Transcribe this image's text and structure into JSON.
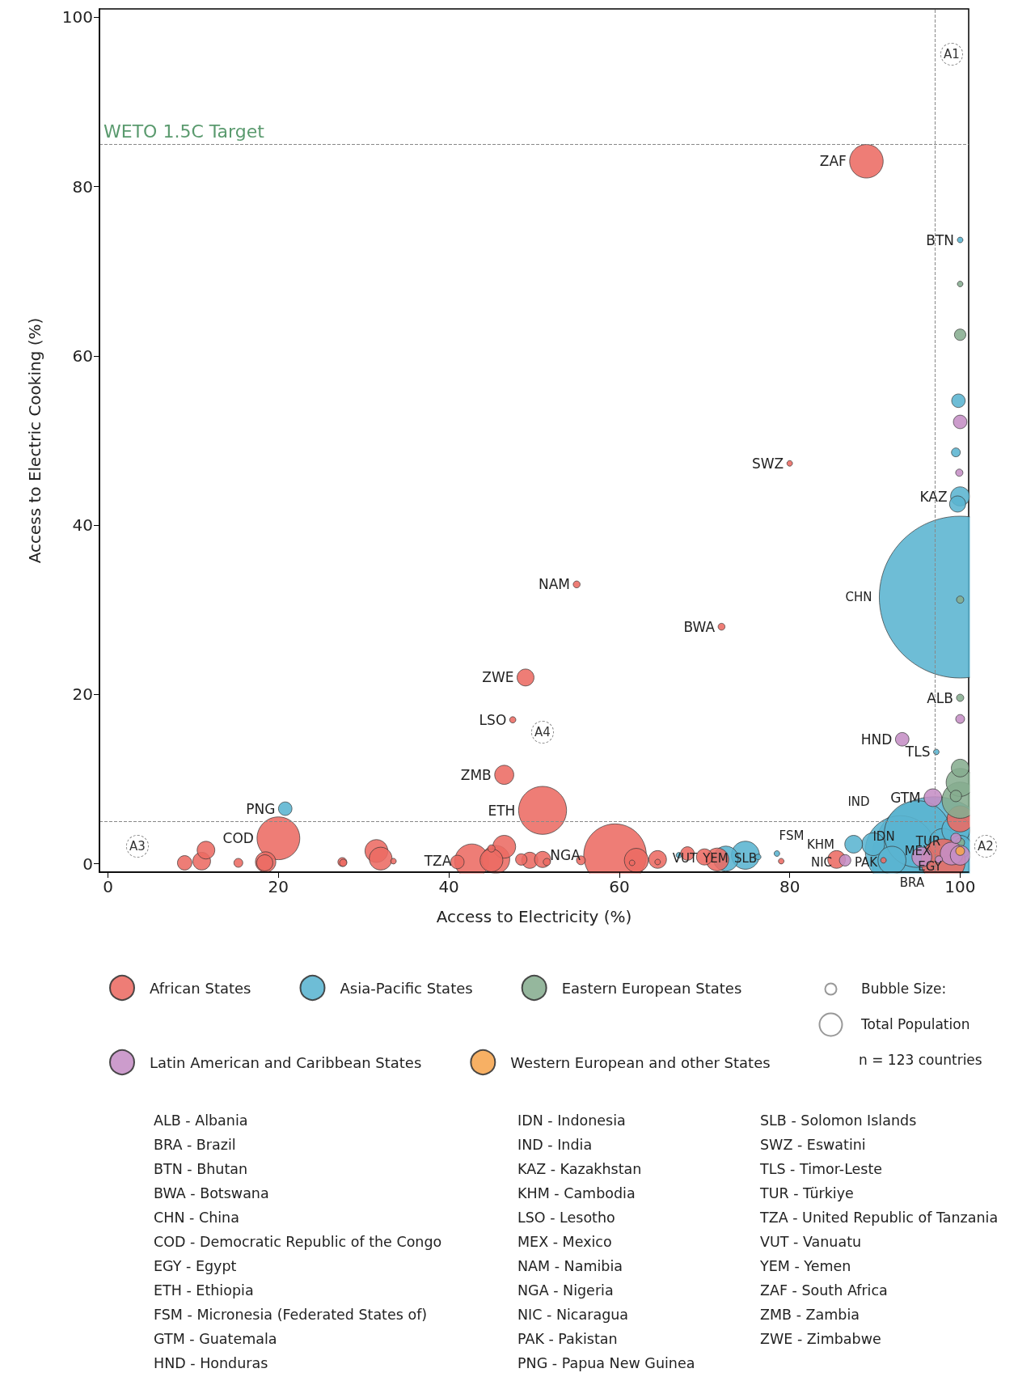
{
  "chart_data": {
    "type": "bubble",
    "xlabel": "Access to Electricity (%)",
    "ylabel": "Access to Electric Cooking (%)",
    "xlim": [
      -1,
      101
    ],
    "ylim": [
      -1,
      101
    ],
    "xticks": [
      0,
      20,
      40,
      60,
      80,
      100
    ],
    "yticks": [
      0,
      20,
      40,
      60,
      80,
      100
    ],
    "grid": false,
    "legend": "bottom",
    "marker": "circle",
    "series": [
      {
        "name": "African States",
        "color": "#ec6b63",
        "x": [
          59.5,
          51,
          20,
          42.7,
          89,
          62,
          49,
          46.5,
          31.5,
          32,
          45.5,
          46.5,
          45,
          18.5,
          11,
          11.5,
          9,
          71.5,
          70,
          64.5,
          68,
          85.5,
          100,
          41,
          49.5,
          51,
          18.4,
          48.5,
          55.5,
          15.3,
          27.5,
          27.6,
          45,
          51.5,
          33.5,
          61.5,
          64.5,
          79,
          91,
          55,
          72,
          47.5,
          80,
          98
        ],
        "values": [
          1,
          6.3,
          3,
          0.3,
          83,
          0.4,
          22,
          10.5,
          1.5,
          0.6,
          0.5,
          2,
          0.4,
          0.2,
          0.3,
          1.6,
          0.1,
          0.5,
          0.8,
          0.5,
          1.2,
          0.5,
          5.3,
          0.2,
          0.4,
          0.5,
          0.1,
          0.5,
          0.4,
          0.1,
          0.2,
          0.1,
          1.8,
          0.2,
          0.3,
          0.1,
          0.2,
          0.3,
          0.4,
          33,
          28,
          17,
          47.3,
          0.3
        ],
        "sizes": [
          0.15,
          0.088,
          0.07,
          0.045,
          0.043,
          0.022,
          0.011,
          0.014,
          0.02,
          0.02,
          0.03,
          0.02,
          0.02,
          0.016,
          0.012,
          0.012,
          0.008,
          0.02,
          0.01,
          0.012,
          0.007,
          0.012,
          0.026,
          0.007,
          0.01,
          0.01,
          0.01,
          0.005,
          0.003,
          0.003,
          0.003,
          0.002,
          0.002,
          0.002,
          0.0012,
          0.0012,
          0.0012,
          0.0012,
          0.0012,
          0.0018,
          0.0018,
          0.0015,
          0.0012,
          0.075
        ]
      },
      {
        "name": "Asia-Pacific States",
        "color": "#5ab4d0",
        "x": [
          100,
          97,
          93,
          95,
          98,
          74.8,
          89.8,
          87.5,
          99.5,
          100,
          100,
          99.7,
          99.8,
          99.5,
          20.8,
          76.3,
          97.2,
          100,
          78.5,
          92,
          67,
          72.5
        ],
        "values": [
          31.5,
          0.5,
          1.5,
          3.5,
          2.5,
          1,
          2.3,
          2.3,
          4,
          2,
          43.4,
          42.5,
          54.7,
          48.6,
          6.5,
          0.8,
          13.2,
          73.7,
          1.2,
          0.4,
          1,
          0.6
        ],
        "sizes": [
          1,
          0.6,
          0.19,
          0.17,
          0.03,
          0.03,
          0.02,
          0.012,
          0.03,
          0.02,
          0.014,
          0.01,
          0.007,
          0.003,
          0.007,
          0.0012,
          0.0012,
          0.0012,
          0.0012,
          0.03,
          0.0012,
          0.024
        ]
      },
      {
        "name": "Eastern European States",
        "color": "#86ad8f",
        "x": [
          100,
          100,
          100,
          99.5,
          100,
          100,
          100,
          100,
          100
        ],
        "values": [
          7.5,
          9.6,
          11.3,
          8,
          62.5,
          31.2,
          19.6,
          68.5,
          2.5
        ],
        "sizes": [
          0.05,
          0.03,
          0.012,
          0.005,
          0.005,
          0.002,
          0.002,
          0.0012,
          0.003
        ]
      },
      {
        "name": "Latin American and Caribbean States",
        "color": "#c58ec5",
        "x": [
          95.5,
          99,
          100,
          96.8,
          93.2,
          100,
          86.5,
          99.9,
          100,
          99.5,
          97.5
        ],
        "values": [
          0.8,
          1.2,
          1,
          7.8,
          14.7,
          52.2,
          0.4,
          46.2,
          17.1,
          3,
          0.5
        ],
        "sizes": [
          0.015,
          0.02,
          0.015,
          0.012,
          0.007,
          0.007,
          0.005,
          0.002,
          0.003,
          0.004,
          0.002
        ]
      },
      {
        "name": "Western European and other States",
        "color": "#f6a54e",
        "x": [
          100
        ],
        "values": [
          1.5
        ],
        "sizes": [
          0.003
        ]
      }
    ],
    "ref_lines": [
      {
        "axis": "y",
        "value": 85,
        "label": "WETO 1.5C Target",
        "color": "#888888",
        "line_style": "dashed"
      },
      {
        "axis": "y",
        "value": 5,
        "color": "#888888",
        "line_style": "dashed"
      },
      {
        "axis": "x",
        "value": 97,
        "color": "#888888",
        "line_style": "dashed"
      }
    ],
    "annotations": [
      {
        "text": "ZAF",
        "x": 89,
        "y": 83
      },
      {
        "text": "BTN",
        "x": 100,
        "y": 73.7
      },
      {
        "text": "SWZ",
        "x": 80,
        "y": 47.3
      },
      {
        "text": "KAZ",
        "x": 100,
        "y": 43.4
      },
      {
        "text": "NAM",
        "x": 55,
        "y": 33
      },
      {
        "text": "BWA",
        "x": 72,
        "y": 28
      },
      {
        "text": "ZWE",
        "x": 49,
        "y": 22
      },
      {
        "text": "ALB",
        "x": 100,
        "y": 19.6
      },
      {
        "text": "LSO",
        "x": 47.5,
        "y": 17
      },
      {
        "text": "HND",
        "x": 93.2,
        "y": 14.7
      },
      {
        "text": "TLS",
        "x": 97.2,
        "y": 13.2
      },
      {
        "text": "ZMB",
        "x": 46.5,
        "y": 10.5
      },
      {
        "text": "GTM",
        "x": 96.8,
        "y": 7.8
      },
      {
        "text": "ETH",
        "x": 51,
        "y": 6.3
      },
      {
        "text": "PNG",
        "x": 20.8,
        "y": 6.5
      },
      {
        "text": "COD",
        "x": 20,
        "y": 3
      },
      {
        "text": "NGA",
        "x": 59.5,
        "y": 1
      },
      {
        "text": "TZA",
        "x": 42.7,
        "y": 0.3
      },
      "CHN",
      "IND",
      "FSM",
      "KHM",
      "IDN",
      "TUR",
      "VUT",
      "YEM",
      "SLB",
      "NIC",
      "PAK",
      "MEX",
      "EGY",
      "BRA",
      "A1",
      "A2",
      "A3",
      "A4",
      "Bubble Size:",
      "Total Population",
      "n = 123 countries",
      "ALB - Albania",
      "BRA - Brazil",
      "BTN - Bhutan",
      "BWA - Botswana",
      "CHN - China",
      "COD - Democratic Republic of the Congo",
      "EGY - Egypt",
      "ETH - Ethiopia",
      "FSM - Micronesia (Federated States of)",
      "GTM - Guatemala",
      "HND - Honduras",
      "IDN - Indonesia",
      "IND - India",
      "KAZ - Kazakhstan",
      "KHM - Cambodia",
      "LSO - Lesotho",
      "MEX - Mexico",
      "NAM - Namibia",
      "NGA - Nigeria",
      "NIC - Nicaragua",
      "PAK - Pakistan",
      "PNG - Papua New Guinea",
      "SLB - Solomon Islands",
      "SWZ - Eswatini",
      "TLS - Timor-Leste",
      "TUR - Türkiye",
      "TZA - United Republic of Tanzania",
      "VUT - Vanuatu",
      "YEM - Yemen",
      "ZAF - South Africa",
      "ZMB - Zambia",
      "ZWE - Zimbabwe"
    ]
  }
}
